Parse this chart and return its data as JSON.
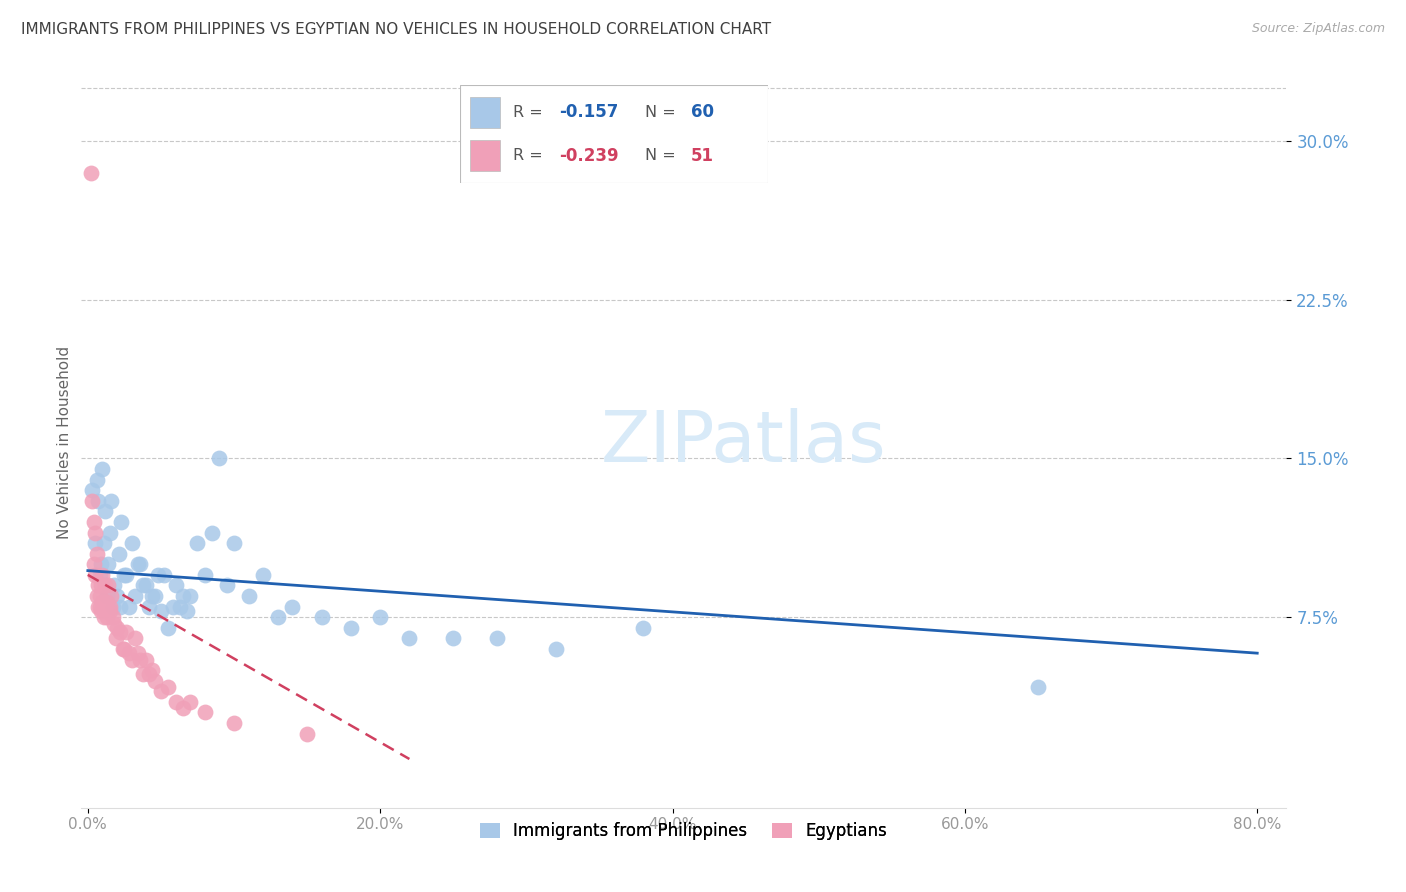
{
  "title": "IMMIGRANTS FROM PHILIPPINES VS EGYPTIAN NO VEHICLES IN HOUSEHOLD CORRELATION CHART",
  "source": "Source: ZipAtlas.com",
  "ylabel": "No Vehicles in Household",
  "ytick_labels": [
    "7.5%",
    "15.0%",
    "22.5%",
    "30.0%"
  ],
  "ytick_values": [
    0.075,
    0.15,
    0.225,
    0.3
  ],
  "xtick_labels": [
    "0.0%",
    "20.0%",
    "40.0%",
    "60.0%",
    "80.0%"
  ],
  "xtick_values": [
    0.0,
    0.2,
    0.4,
    0.6,
    0.8
  ],
  "xlim": [
    -0.005,
    0.82
  ],
  "ylim": [
    -0.015,
    0.33
  ],
  "legend_label1": "Immigrants from Philippines",
  "legend_label2": "Egyptians",
  "r1": "-0.157",
  "n1": "60",
  "r2": "-0.239",
  "n2": "51",
  "color1": "#a8c8e8",
  "color2": "#f0a0b8",
  "line1_color": "#2060b0",
  "line2_color": "#d04060",
  "background_color": "#ffffff",
  "grid_color": "#c8c8c8",
  "title_color": "#404040",
  "right_tick_color": "#5b9bd5",
  "watermark_color": "#d8eaf8",
  "philippines_x": [
    0.003,
    0.005,
    0.006,
    0.007,
    0.008,
    0.009,
    0.01,
    0.011,
    0.012,
    0.013,
    0.014,
    0.015,
    0.016,
    0.017,
    0.018,
    0.02,
    0.021,
    0.022,
    0.023,
    0.025,
    0.026,
    0.028,
    0.03,
    0.032,
    0.034,
    0.036,
    0.038,
    0.04,
    0.042,
    0.044,
    0.046,
    0.048,
    0.05,
    0.052,
    0.055,
    0.058,
    0.06,
    0.063,
    0.065,
    0.068,
    0.07,
    0.075,
    0.08,
    0.085,
    0.09,
    0.095,
    0.1,
    0.11,
    0.12,
    0.13,
    0.14,
    0.16,
    0.18,
    0.2,
    0.22,
    0.25,
    0.28,
    0.32,
    0.38,
    0.65
  ],
  "philippines_y": [
    0.135,
    0.11,
    0.14,
    0.13,
    0.095,
    0.1,
    0.145,
    0.11,
    0.125,
    0.085,
    0.1,
    0.115,
    0.13,
    0.08,
    0.09,
    0.085,
    0.105,
    0.08,
    0.12,
    0.095,
    0.095,
    0.08,
    0.11,
    0.085,
    0.1,
    0.1,
    0.09,
    0.09,
    0.08,
    0.085,
    0.085,
    0.095,
    0.078,
    0.095,
    0.07,
    0.08,
    0.09,
    0.08,
    0.085,
    0.078,
    0.085,
    0.11,
    0.095,
    0.115,
    0.15,
    0.09,
    0.11,
    0.085,
    0.095,
    0.075,
    0.08,
    0.075,
    0.07,
    0.075,
    0.065,
    0.065,
    0.065,
    0.06,
    0.07,
    0.042
  ],
  "egyptians_x": [
    0.002,
    0.003,
    0.004,
    0.004,
    0.005,
    0.005,
    0.006,
    0.006,
    0.007,
    0.007,
    0.008,
    0.008,
    0.009,
    0.009,
    0.01,
    0.01,
    0.011,
    0.012,
    0.012,
    0.013,
    0.013,
    0.014,
    0.015,
    0.015,
    0.016,
    0.017,
    0.018,
    0.019,
    0.02,
    0.022,
    0.024,
    0.025,
    0.026,
    0.028,
    0.03,
    0.032,
    0.034,
    0.036,
    0.038,
    0.04,
    0.042,
    0.044,
    0.046,
    0.05,
    0.055,
    0.06,
    0.065,
    0.07,
    0.08,
    0.1,
    0.15
  ],
  "egyptians_y": [
    0.285,
    0.13,
    0.12,
    0.1,
    0.115,
    0.095,
    0.105,
    0.085,
    0.09,
    0.08,
    0.085,
    0.08,
    0.09,
    0.078,
    0.095,
    0.082,
    0.075,
    0.09,
    0.078,
    0.082,
    0.075,
    0.09,
    0.08,
    0.078,
    0.085,
    0.075,
    0.072,
    0.065,
    0.07,
    0.068,
    0.06,
    0.06,
    0.068,
    0.058,
    0.055,
    0.065,
    0.058,
    0.055,
    0.048,
    0.055,
    0.048,
    0.05,
    0.045,
    0.04,
    0.042,
    0.035,
    0.032,
    0.035,
    0.03,
    0.025,
    0.02
  ],
  "phil_line_x": [
    0.0,
    0.8
  ],
  "phil_line_y": [
    0.097,
    0.058
  ],
  "egypt_line_x": [
    0.0,
    0.22
  ],
  "egypt_line_y": [
    0.095,
    0.008
  ]
}
